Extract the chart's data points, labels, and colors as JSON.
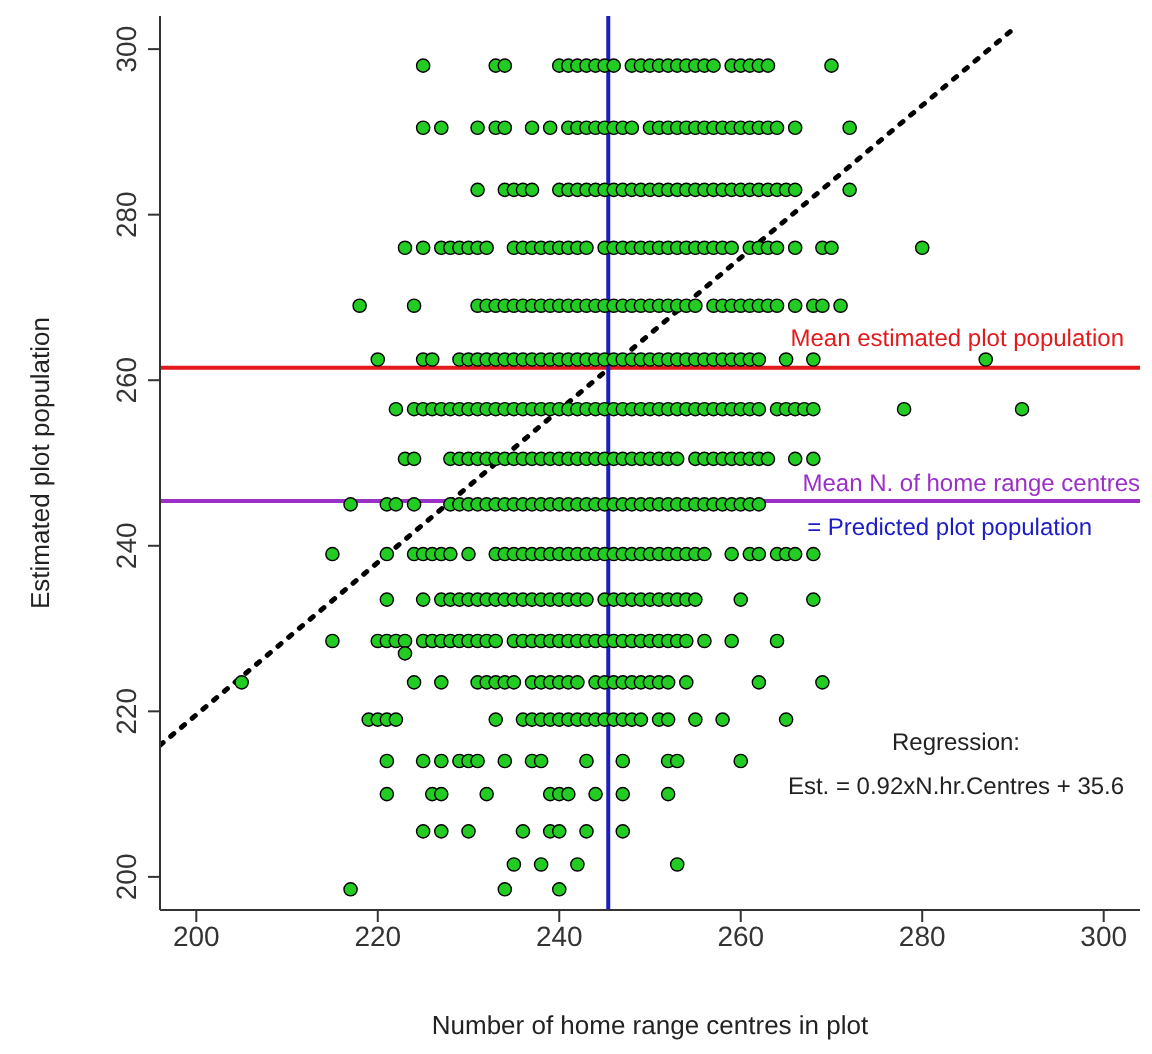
{
  "chart_data": {
    "type": "scatter",
    "xlabel": "Number of home range centres in plot",
    "ylabel": "Estimated plot population",
    "xlim": [
      196,
      304
    ],
    "ylim": [
      196,
      304
    ],
    "xticks": [
      200,
      220,
      240,
      260,
      280,
      300
    ],
    "yticks": [
      200,
      220,
      240,
      260,
      280,
      300
    ],
    "marker": "circle",
    "series": [
      {
        "type": "scatter",
        "color": "#22cc22",
        "x": [
          225,
          233,
          234,
          240,
          241,
          242,
          243,
          244,
          245,
          246,
          248,
          249,
          250,
          251,
          252,
          253,
          254,
          255,
          256,
          257,
          259,
          260,
          261,
          262,
          263,
          270
        ],
        "values": [
          298,
          298,
          298,
          298,
          298,
          298,
          298,
          298,
          298,
          298,
          298,
          298,
          298,
          298,
          298,
          298,
          298,
          298,
          298,
          298,
          298,
          298,
          298,
          298,
          298,
          298
        ]
      },
      {
        "type": "scatter",
        "color": "#22cc22",
        "x": [
          225,
          227,
          231,
          233,
          234,
          237,
          239,
          241,
          242,
          243,
          244,
          245,
          246,
          247,
          248,
          250,
          251,
          252,
          253,
          254,
          255,
          256,
          257,
          258,
          259,
          260,
          261,
          262,
          263,
          264,
          266,
          272
        ],
        "values": [
          290.5,
          290.5,
          290.5,
          290.5,
          290.5,
          290.5,
          290.5,
          290.5,
          290.5,
          290.5,
          290.5,
          290.5,
          290.5,
          290.5,
          290.5,
          290.5,
          290.5,
          290.5,
          290.5,
          290.5,
          290.5,
          290.5,
          290.5,
          290.5,
          290.5,
          290.5,
          290.5,
          290.5,
          290.5,
          290.5,
          290.5,
          290.5
        ]
      },
      {
        "type": "scatter",
        "color": "#22cc22",
        "x": [
          231,
          234,
          235,
          236,
          237,
          240,
          241,
          242,
          243,
          244,
          245,
          246,
          247,
          248,
          249,
          250,
          251,
          252,
          253,
          254,
          255,
          256,
          257,
          258,
          259,
          260,
          261,
          262,
          263,
          264,
          265,
          266,
          272
        ],
        "values": [
          283,
          283,
          283,
          283,
          283,
          283,
          283,
          283,
          283,
          283,
          283,
          283,
          283,
          283,
          283,
          283,
          283,
          283,
          283,
          283,
          283,
          283,
          283,
          283,
          283,
          283,
          283,
          283,
          283,
          283,
          283,
          283,
          283
        ]
      },
      {
        "type": "scatter",
        "color": "#22cc22",
        "x": [
          223,
          225,
          227,
          228,
          229,
          230,
          231,
          232,
          235,
          236,
          237,
          238,
          239,
          240,
          241,
          242,
          243,
          245,
          246,
          247,
          248,
          249,
          250,
          251,
          252,
          253,
          254,
          255,
          256,
          257,
          258,
          259,
          261,
          262,
          263,
          264,
          266,
          269,
          270,
          280
        ],
        "values": [
          276,
          276,
          276,
          276,
          276,
          276,
          276,
          276,
          276,
          276,
          276,
          276,
          276,
          276,
          276,
          276,
          276,
          276,
          276,
          276,
          276,
          276,
          276,
          276,
          276,
          276,
          276,
          276,
          276,
          276,
          276,
          276,
          276,
          276,
          276,
          276,
          276,
          276,
          276,
          276
        ]
      },
      {
        "type": "scatter",
        "color": "#22cc22",
        "x": [
          218,
          224,
          231,
          232,
          233,
          234,
          235,
          236,
          237,
          238,
          239,
          240,
          241,
          242,
          243,
          244,
          245,
          246,
          247,
          248,
          249,
          250,
          251,
          252,
          253,
          254,
          255,
          257,
          258,
          259,
          260,
          261,
          262,
          263,
          264,
          266,
          268,
          269,
          271
        ],
        "values": [
          269,
          269,
          269,
          269,
          269,
          269,
          269,
          269,
          269,
          269,
          269,
          269,
          269,
          269,
          269,
          269,
          269,
          269,
          269,
          269,
          269,
          269,
          269,
          269,
          269,
          269,
          269,
          269,
          269,
          269,
          269,
          269,
          269,
          269,
          269,
          269,
          269,
          269,
          269
        ]
      },
      {
        "type": "scatter",
        "color": "#22cc22",
        "x": [
          220,
          225,
          226,
          229,
          230,
          231,
          232,
          233,
          234,
          235,
          236,
          237,
          238,
          239,
          240,
          241,
          242,
          243,
          244,
          245,
          246,
          247,
          248,
          249,
          250,
          251,
          252,
          253,
          254,
          255,
          256,
          257,
          258,
          259,
          260,
          261,
          262,
          265,
          268,
          287
        ],
        "values": [
          262.5,
          262.5,
          262.5,
          262.5,
          262.5,
          262.5,
          262.5,
          262.5,
          262.5,
          262.5,
          262.5,
          262.5,
          262.5,
          262.5,
          262.5,
          262.5,
          262.5,
          262.5,
          262.5,
          262.5,
          262.5,
          262.5,
          262.5,
          262.5,
          262.5,
          262.5,
          262.5,
          262.5,
          262.5,
          262.5,
          262.5,
          262.5,
          262.5,
          262.5,
          262.5,
          262.5,
          262.5,
          262.5,
          262.5,
          262.5
        ]
      },
      {
        "type": "scatter",
        "color": "#22cc22",
        "x": [
          222,
          224,
          225,
          226,
          227,
          228,
          229,
          230,
          231,
          232,
          233,
          234,
          235,
          236,
          237,
          238,
          239,
          240,
          241,
          242,
          243,
          244,
          245,
          246,
          247,
          248,
          249,
          250,
          251,
          252,
          253,
          254,
          255,
          256,
          257,
          258,
          259,
          260,
          261,
          262,
          264,
          265,
          266,
          267,
          268,
          278,
          291
        ],
        "values": [
          256.5,
          256.5,
          256.5,
          256.5,
          256.5,
          256.5,
          256.5,
          256.5,
          256.5,
          256.5,
          256.5,
          256.5,
          256.5,
          256.5,
          256.5,
          256.5,
          256.5,
          256.5,
          256.5,
          256.5,
          256.5,
          256.5,
          256.5,
          256.5,
          256.5,
          256.5,
          256.5,
          256.5,
          256.5,
          256.5,
          256.5,
          256.5,
          256.5,
          256.5,
          256.5,
          256.5,
          256.5,
          256.5,
          256.5,
          256.5,
          256.5,
          256.5,
          256.5,
          256.5,
          256.5,
          256.5,
          256.5
        ]
      },
      {
        "type": "scatter",
        "color": "#22cc22",
        "x": [
          223,
          224,
          228,
          229,
          230,
          231,
          232,
          233,
          234,
          235,
          236,
          237,
          238,
          239,
          240,
          241,
          242,
          243,
          244,
          245,
          246,
          247,
          248,
          249,
          250,
          251,
          252,
          253,
          255,
          256,
          257,
          258,
          259,
          260,
          261,
          262,
          263,
          266,
          268
        ],
        "values": [
          250.5,
          250.5,
          250.5,
          250.5,
          250.5,
          250.5,
          250.5,
          250.5,
          250.5,
          250.5,
          250.5,
          250.5,
          250.5,
          250.5,
          250.5,
          250.5,
          250.5,
          250.5,
          250.5,
          250.5,
          250.5,
          250.5,
          250.5,
          250.5,
          250.5,
          250.5,
          250.5,
          250.5,
          250.5,
          250.5,
          250.5,
          250.5,
          250.5,
          250.5,
          250.5,
          250.5,
          250.5,
          250.5,
          250.5
        ]
      },
      {
        "type": "scatter",
        "color": "#22cc22",
        "x": [
          217,
          221,
          222,
          224,
          228,
          229,
          230,
          231,
          232,
          233,
          234,
          235,
          236,
          237,
          238,
          239,
          240,
          241,
          242,
          243,
          244,
          245,
          246,
          247,
          248,
          249,
          250,
          251,
          252,
          253,
          254,
          255,
          256,
          257,
          258,
          259,
          260,
          261,
          262
        ],
        "values": [
          245,
          245,
          245,
          245,
          245,
          245,
          245,
          245,
          245,
          245,
          245,
          245,
          245,
          245,
          245,
          245,
          245,
          245,
          245,
          245,
          245,
          245,
          245,
          245,
          245,
          245,
          245,
          245,
          245,
          245,
          245,
          245,
          245,
          245,
          245,
          245,
          245,
          245,
          245
        ]
      },
      {
        "type": "scatter",
        "color": "#22cc22",
        "x": [
          215,
          221,
          224,
          225,
          226,
          227,
          228,
          230,
          233,
          234,
          235,
          236,
          237,
          238,
          239,
          240,
          241,
          242,
          243,
          244,
          245,
          246,
          247,
          248,
          249,
          250,
          251,
          252,
          253,
          254,
          255,
          256,
          259,
          261,
          262,
          264,
          265,
          266,
          268
        ],
        "values": [
          239,
          239,
          239,
          239,
          239,
          239,
          239,
          239,
          239,
          239,
          239,
          239,
          239,
          239,
          239,
          239,
          239,
          239,
          239,
          239,
          239,
          239,
          239,
          239,
          239,
          239,
          239,
          239,
          239,
          239,
          239,
          239,
          239,
          239,
          239,
          239,
          239,
          239,
          239
        ]
      },
      {
        "type": "scatter",
        "color": "#22cc22",
        "x": [
          221,
          225,
          227,
          228,
          229,
          230,
          231,
          232,
          233,
          234,
          235,
          236,
          237,
          238,
          239,
          240,
          241,
          242,
          243,
          245,
          246,
          247,
          248,
          249,
          250,
          251,
          252,
          253,
          254,
          255,
          260,
          268
        ],
        "values": [
          233.5,
          233.5,
          233.5,
          233.5,
          233.5,
          233.5,
          233.5,
          233.5,
          233.5,
          233.5,
          233.5,
          233.5,
          233.5,
          233.5,
          233.5,
          233.5,
          233.5,
          233.5,
          233.5,
          233.5,
          233.5,
          233.5,
          233.5,
          233.5,
          233.5,
          233.5,
          233.5,
          233.5,
          233.5,
          233.5,
          233.5,
          233.5
        ]
      },
      {
        "type": "scatter",
        "color": "#22cc22",
        "x": [
          215,
          220,
          221,
          222,
          223,
          225,
          226,
          227,
          228,
          229,
          230,
          231,
          232,
          233,
          235,
          236,
          237,
          238,
          239,
          240,
          241,
          242,
          243,
          244,
          245,
          246,
          247,
          248,
          249,
          250,
          251,
          252,
          253,
          254,
          256,
          259,
          264,
          223
        ],
        "values": [
          228.5,
          228.5,
          228.5,
          228.5,
          228.5,
          228.5,
          228.5,
          228.5,
          228.5,
          228.5,
          228.5,
          228.5,
          228.5,
          228.5,
          228.5,
          228.5,
          228.5,
          228.5,
          228.5,
          228.5,
          228.5,
          228.5,
          228.5,
          228.5,
          228.5,
          228.5,
          228.5,
          228.5,
          228.5,
          228.5,
          228.5,
          228.5,
          228.5,
          228.5,
          228.5,
          228.5,
          228.5,
          227
        ]
      },
      {
        "type": "scatter",
        "color": "#22cc22",
        "x": [
          205,
          224,
          227,
          231,
          232,
          233,
          234,
          235,
          237,
          238,
          239,
          240,
          241,
          242,
          244,
          245,
          246,
          247,
          248,
          249,
          250,
          251,
          252,
          254,
          262,
          269
        ],
        "values": [
          223.5,
          223.5,
          223.5,
          223.5,
          223.5,
          223.5,
          223.5,
          223.5,
          223.5,
          223.5,
          223.5,
          223.5,
          223.5,
          223.5,
          223.5,
          223.5,
          223.5,
          223.5,
          223.5,
          223.5,
          223.5,
          223.5,
          223.5,
          223.5,
          223.5,
          223.5
        ]
      },
      {
        "type": "scatter",
        "color": "#22cc22",
        "x": [
          219,
          220,
          221,
          222,
          233,
          236,
          237,
          238,
          239,
          240,
          241,
          242,
          243,
          244,
          245,
          246,
          247,
          248,
          249,
          251,
          252,
          255,
          258,
          265
        ],
        "values": [
          219,
          219,
          219,
          219,
          219,
          219,
          219,
          219,
          219,
          219,
          219,
          219,
          219,
          219,
          219,
          219,
          219,
          219,
          219,
          219,
          219,
          219,
          219,
          219
        ]
      },
      {
        "type": "scatter",
        "color": "#22cc22",
        "x": [
          221,
          225,
          227,
          229,
          230,
          231,
          234,
          237,
          238,
          243,
          247,
          252,
          253,
          260
        ],
        "values": [
          214,
          214,
          214,
          214,
          214,
          214,
          214,
          214,
          214,
          214,
          214,
          214,
          214,
          214
        ]
      },
      {
        "type": "scatter",
        "color": "#22cc22",
        "x": [
          221,
          226,
          227,
          232,
          239,
          240,
          241,
          244,
          247,
          252
        ],
        "values": [
          210,
          210,
          210,
          210,
          210,
          210,
          210,
          210,
          210,
          210
        ]
      },
      {
        "type": "scatter",
        "color": "#22cc22",
        "x": [
          225,
          227,
          230,
          236,
          239,
          240,
          243,
          247
        ],
        "values": [
          205.5,
          205.5,
          205.5,
          205.5,
          205.5,
          205.5,
          205.5,
          205.5
        ]
      },
      {
        "type": "scatter",
        "color": "#22cc22",
        "x": [
          235,
          238,
          242,
          253
        ],
        "values": [
          201.5,
          201.5,
          201.5,
          201.5
        ]
      },
      {
        "type": "scatter",
        "color": "#22cc22",
        "x": [
          217,
          234,
          240
        ],
        "values": [
          198.5,
          198.5,
          198.5
        ]
      },
      {
        "type": "line",
        "color": "#000000",
        "line_style": "dotted",
        "marker": "none",
        "x": [
          196,
          290
        ],
        "values": [
          215.9,
          302.4
        ]
      }
    ],
    "ref_lines": [
      {
        "axis": "y",
        "value": 261.5,
        "label": "Mean estimated plot population",
        "color": "#e31a1c"
      },
      {
        "axis": "y",
        "value": 245.4,
        "label": "Mean N. of home range centres",
        "color": "#9b30c8"
      },
      {
        "axis": "x",
        "value": 245.4,
        "label": "= Predicted plot population",
        "color": "#1c1cc4"
      }
    ],
    "annotations": [
      "Regression:",
      "Est. = 0.92xN.hr.Centres + 35.6"
    ]
  }
}
